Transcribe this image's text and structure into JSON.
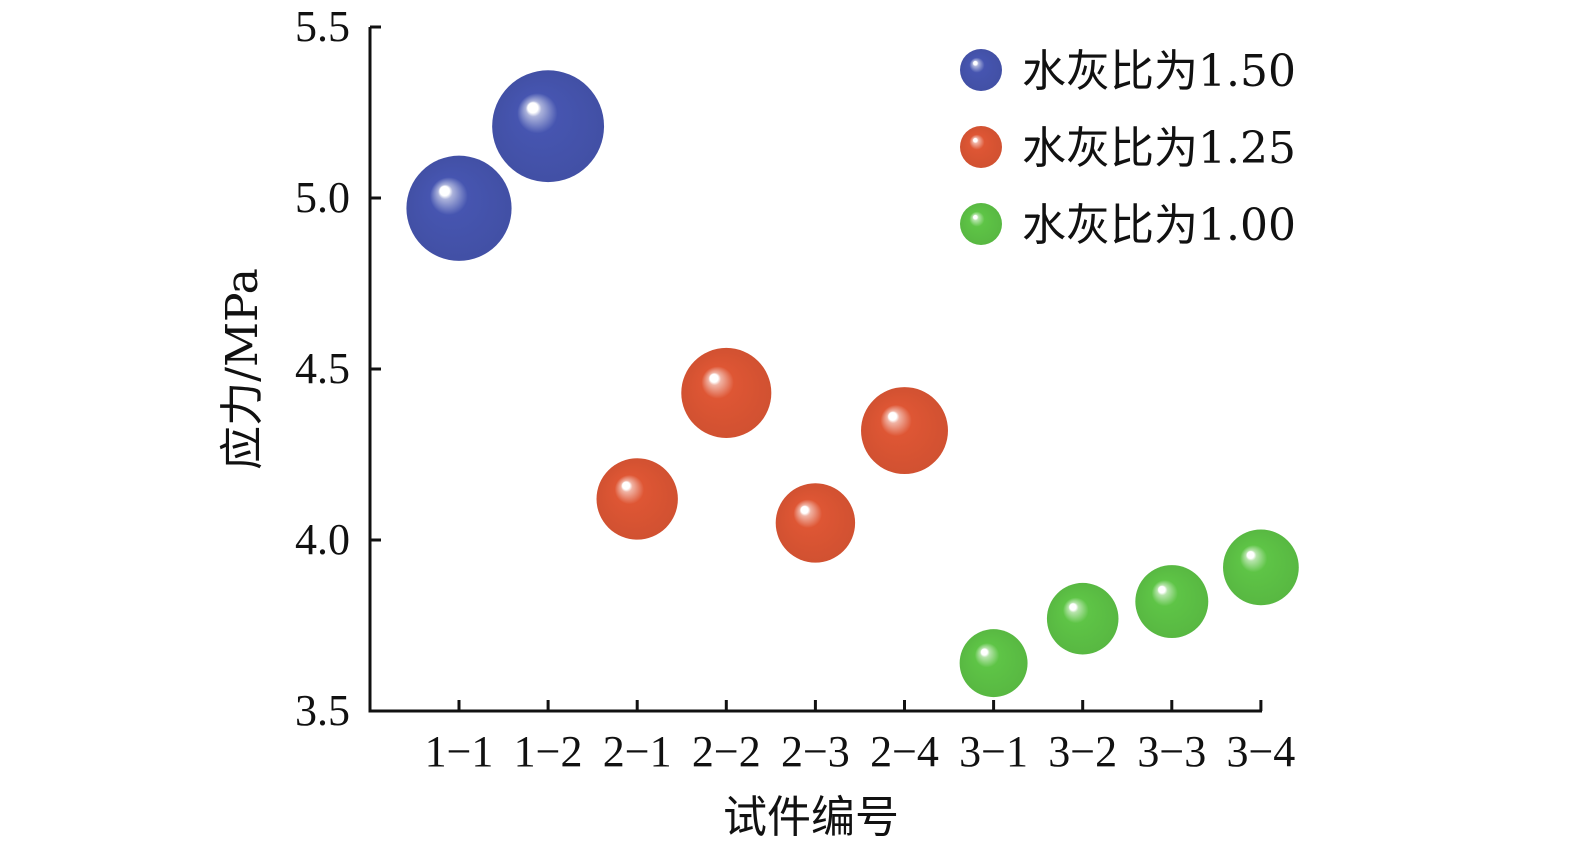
{
  "chart_data": {
    "type": "scatter",
    "title": "",
    "xlabel": "试件编号",
    "ylabel": "应力/MPa",
    "ylim": [
      3.5,
      5.5
    ],
    "y_ticks": [
      "3.5",
      "4.0",
      "4.5",
      "5.0",
      "5.5"
    ],
    "categories": [
      "1−1",
      "1−2",
      "2−1",
      "2−2",
      "2−3",
      "2−4",
      "3−1",
      "3−2",
      "3−3",
      "3−4"
    ],
    "grid": false,
    "legend_position": "top-right",
    "series": [
      {
        "name": "水灰比为1.50",
        "color": "#4655b0",
        "points": [
          {
            "x": "1−1",
            "y": 4.97
          },
          {
            "x": "1−2",
            "y": 5.21
          }
        ]
      },
      {
        "name": "水灰比为1.25",
        "color": "#de5634",
        "points": [
          {
            "x": "2−1",
            "y": 4.12
          },
          {
            "x": "2−2",
            "y": 4.43
          },
          {
            "x": "2−3",
            "y": 4.05
          },
          {
            "x": "2−4",
            "y": 4.32
          }
        ]
      },
      {
        "name": "水灰比为1.00",
        "color": "#5ec446",
        "points": [
          {
            "x": "3−1",
            "y": 3.64
          },
          {
            "x": "3−2",
            "y": 3.77
          },
          {
            "x": "3−3",
            "y": 3.82
          },
          {
            "x": "3−4",
            "y": 3.92
          }
        ]
      }
    ]
  }
}
